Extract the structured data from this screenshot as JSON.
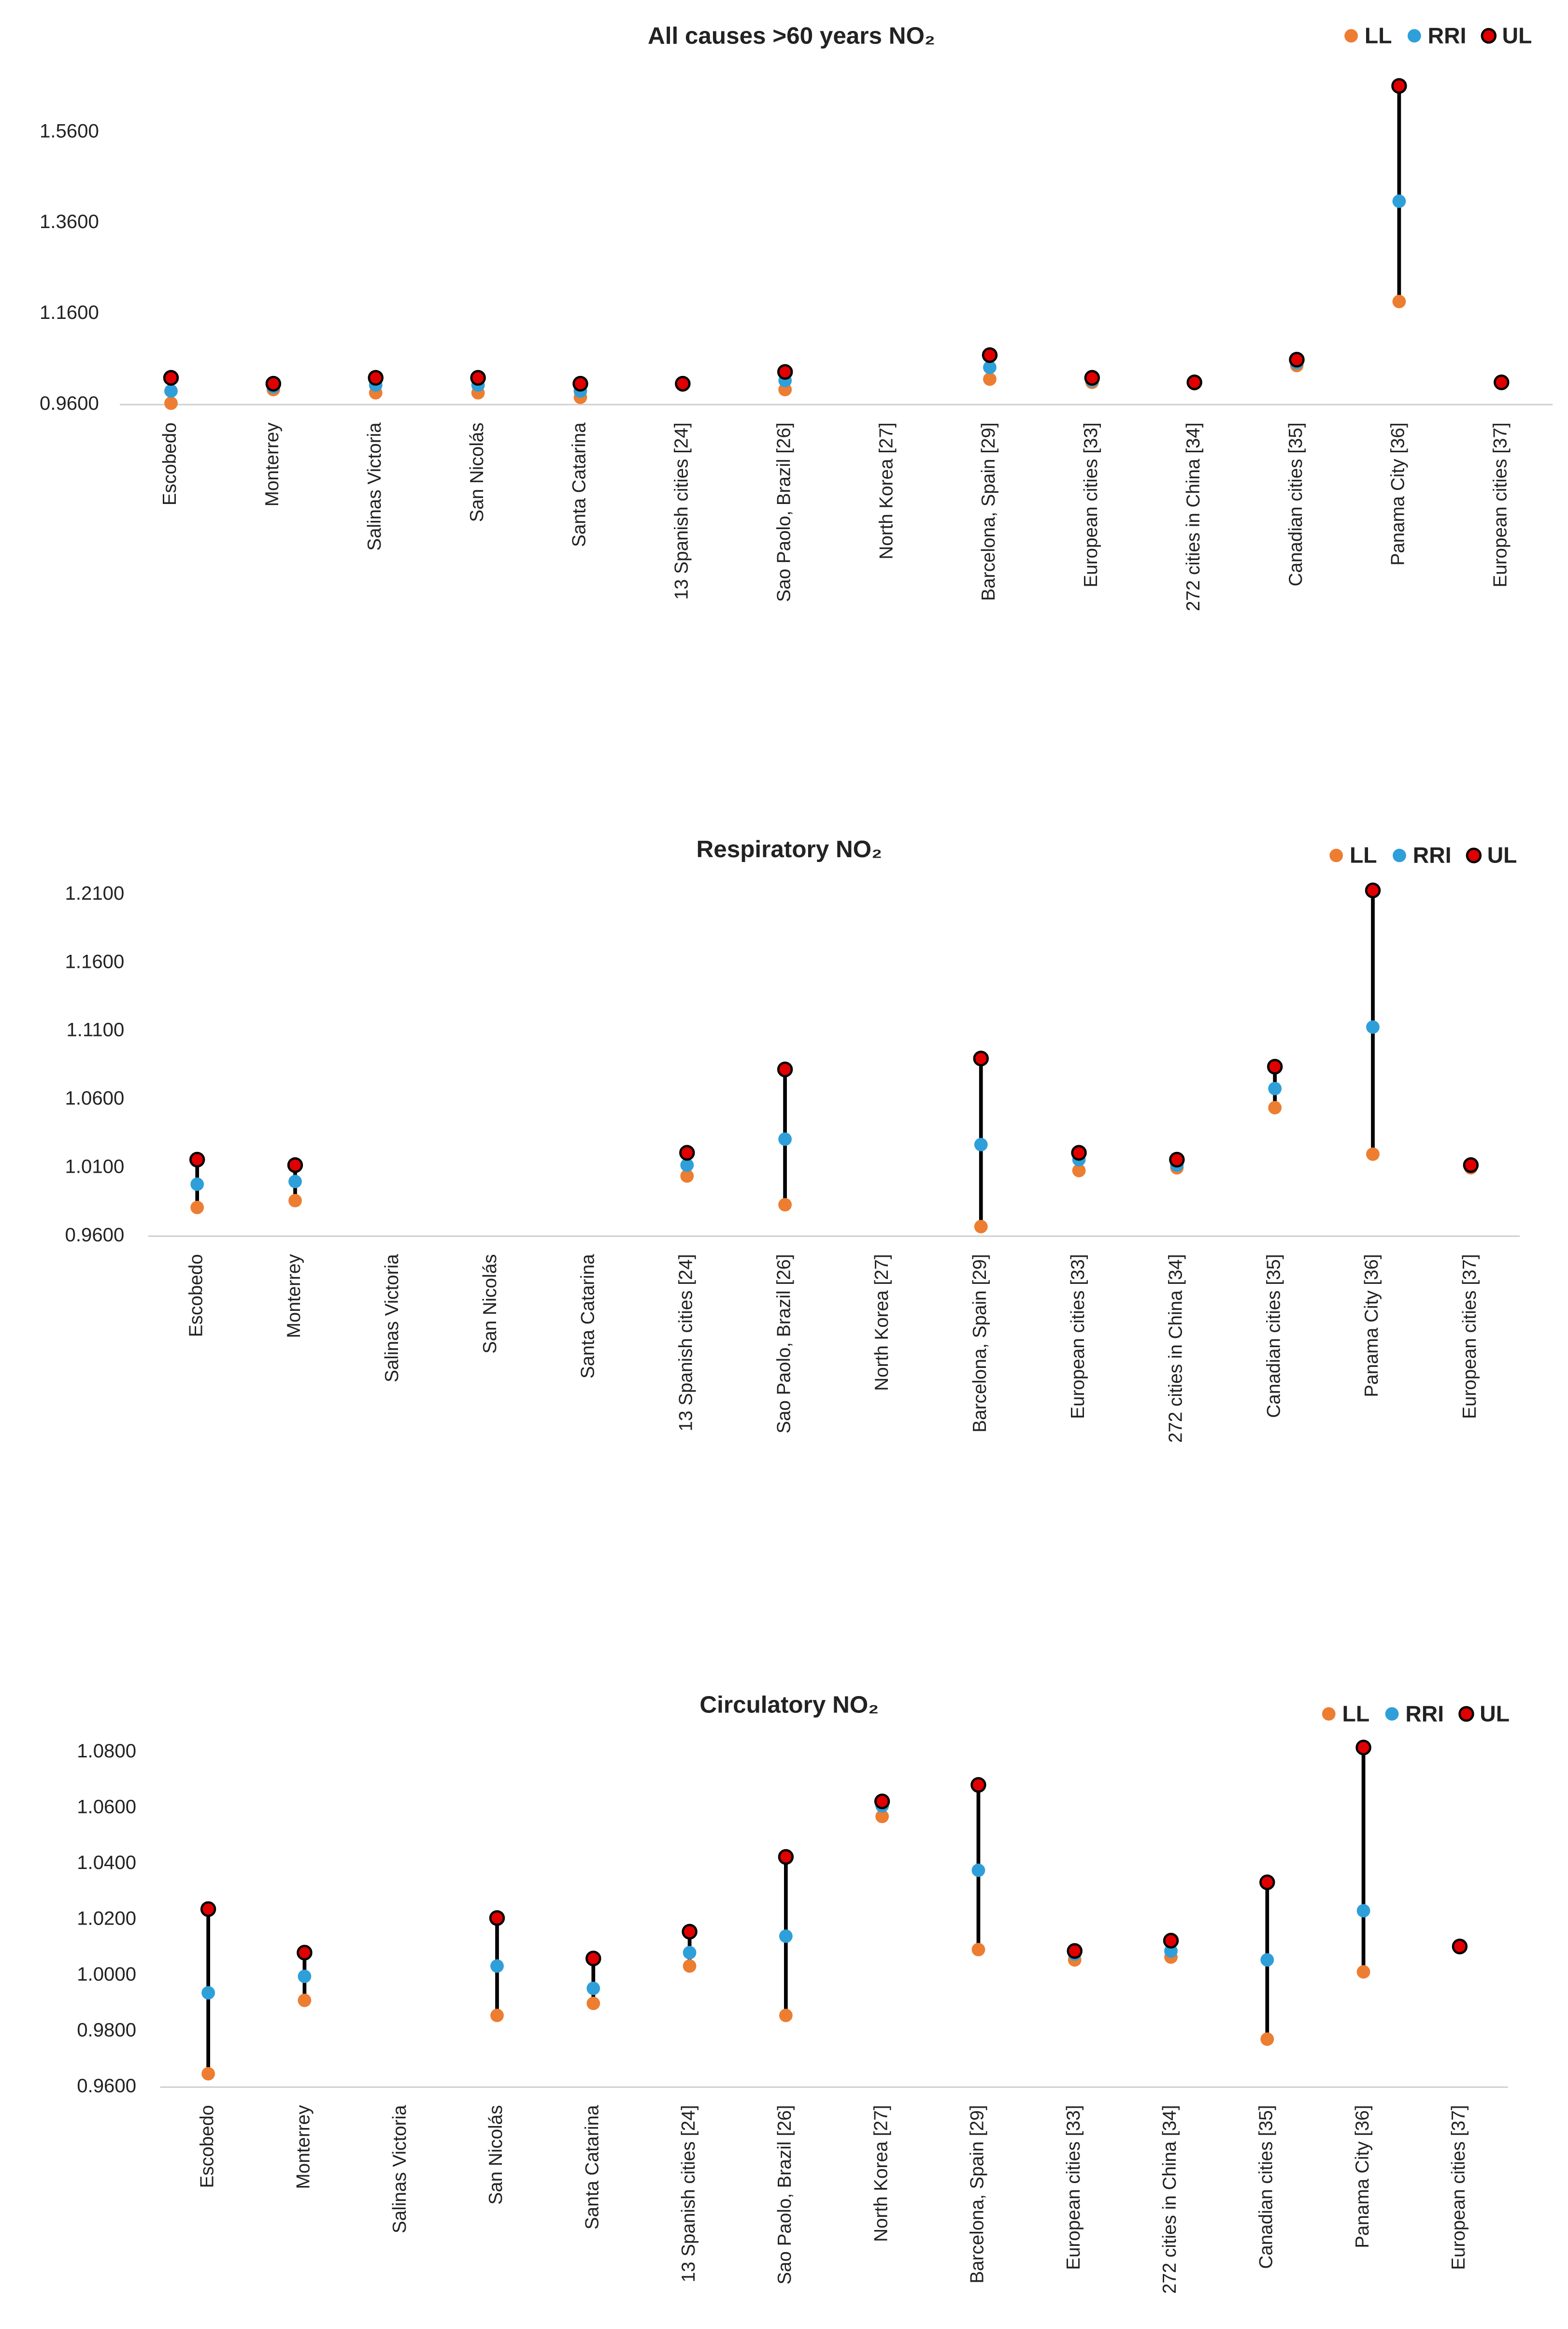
{
  "chart_data": [
    {
      "type": "range-dot",
      "title": "All causes >60 years NO₂",
      "categories": [
        "Escobedo",
        "Monterrey",
        "Salinas Victoria",
        "San Nicolás",
        "Santa Catarina",
        "13 Spanish cities [24]",
        "Sao Paolo, Brazil [26]",
        "North Korea [27]",
        "Barcelona, Spain [29]",
        "European cities [33]",
        "272 cities in China [34]",
        "Canadian cities [35]",
        "Panama City [36]",
        "European cities [37]"
      ],
      "series": [
        {
          "name": "LL",
          "color": "#ed7d31",
          "values": [
            0.963,
            0.993,
            0.986,
            0.986,
            0.976,
            1.003,
            0.993,
            null,
            1.016,
            1.009,
            1.006,
            1.046,
            1.187,
            1.007
          ]
        },
        {
          "name": "RRI",
          "color": "#2e9fd9",
          "values": [
            0.99,
            0.999,
            1.003,
            1.003,
            0.99,
            1.004,
            1.013,
            null,
            1.042,
            1.013,
            1.008,
            1.052,
            1.408,
            1.008
          ]
        },
        {
          "name": "UL",
          "color": "#e00000",
          "values": [
            1.019,
            1.006,
            1.019,
            1.019,
            1.006,
            1.006,
            1.032,
            null,
            1.069,
            1.019,
            1.009,
            1.059,
            1.662,
            1.009
          ]
        }
      ],
      "ylim": [
        0.96,
        1.7
      ],
      "yticks": [
        {
          "value": 0.96,
          "label": "0.9600"
        },
        {
          "value": 1.16,
          "label": "1.1600"
        },
        {
          "value": 1.36,
          "label": "1.3600"
        },
        {
          "value": 1.56,
          "label": "1.5600"
        }
      ],
      "legend": "top-right"
    },
    {
      "type": "range-dot",
      "title": "Respiratory NO₂",
      "categories": [
        "Escobedo",
        "Monterrey",
        "Salinas Victoria",
        "San Nicolás",
        "Santa Catarina",
        "13 Spanish cities [24]",
        "Sao Paolo, Brazil [26]",
        "North Korea [27]",
        "Barcelona, Spain [29]",
        "European cities [33]",
        "272 cities in China [34]",
        "Canadian cities [35]",
        "Panama City [36]",
        "European cities [37]"
      ],
      "series": [
        {
          "name": "LL",
          "color": "#ed7d31",
          "values": [
            0.981,
            0.986,
            null,
            null,
            null,
            1.004,
            0.983,
            null,
            0.967,
            1.008,
            1.01,
            1.054,
            1.02,
            1.01
          ]
        },
        {
          "name": "RRI",
          "color": "#2e9fd9",
          "values": [
            0.998,
            1.0,
            null,
            null,
            null,
            1.012,
            1.031,
            null,
            1.027,
            1.016,
            1.012,
            1.068,
            1.113,
            1.011
          ]
        },
        {
          "name": "UL",
          "color": "#e00000",
          "values": [
            1.016,
            1.012,
            null,
            null,
            null,
            1.021,
            1.082,
            null,
            1.09,
            1.021,
            1.016,
            1.084,
            1.213,
            1.012
          ]
        }
      ],
      "ylim": [
        0.96,
        1.22
      ],
      "yticks": [
        {
          "value": 0.96,
          "label": "0.9600"
        },
        {
          "value": 1.01,
          "label": "1.0100"
        },
        {
          "value": 1.06,
          "label": "1.0600"
        },
        {
          "value": 1.11,
          "label": "1.1100"
        },
        {
          "value": 1.16,
          "label": "1.1600"
        },
        {
          "value": 1.21,
          "label": "1.2100"
        }
      ],
      "legend": "top-right"
    },
    {
      "type": "range-dot",
      "title": "Circulatory NO₂",
      "categories": [
        "Escobedo",
        "Monterrey",
        "Salinas Victoria",
        "San Nicolás",
        "Santa Catarina",
        "13 Spanish cities [24]",
        "Sao Paolo, Brazil [26]",
        "North Korea [27]",
        "Barcelona, Spain [29]",
        "European cities [33]",
        "272 cities in China [34]",
        "Canadian cities [35]",
        "Panama City [36]",
        "European cities [37]"
      ],
      "series": [
        {
          "name": "LL",
          "color": "#ed7d31",
          "values": [
            0.9648,
            0.9911,
            null,
            0.9857,
            0.99,
            1.0034,
            0.9857,
            1.057,
            1.0093,
            1.0056,
            1.0066,
            0.9772,
            1.0013,
            1.0104
          ]
        },
        {
          "name": "RRI",
          "color": "#2e9fd9",
          "values": [
            0.9938,
            0.9997,
            null,
            1.0034,
            0.9954,
            1.0082,
            1.0141,
            1.0608,
            1.0377,
            1.0077,
            1.0088,
            1.0056,
            1.0232,
            1.0104
          ]
        },
        {
          "name": "UL",
          "color": "#e00000",
          "values": [
            1.0238,
            1.0082,
            null,
            1.0206,
            1.0061,
            1.0157,
            1.0425,
            1.0624,
            1.0683,
            1.0088,
            1.0125,
            1.0334,
            1.0817,
            1.0104
          ]
        }
      ],
      "ylim": [
        0.96,
        1.09
      ],
      "yticks": [
        {
          "value": 0.96,
          "label": "0.9600"
        },
        {
          "value": 0.98,
          "label": "0.9800"
        },
        {
          "value": 1.0,
          "label": "1.0000"
        },
        {
          "value": 1.02,
          "label": "1.0200"
        },
        {
          "value": 1.04,
          "label": "1.0400"
        },
        {
          "value": 1.06,
          "label": "1.0600"
        },
        {
          "value": 1.08,
          "label": "1.0800"
        }
      ],
      "legend": "top-right"
    }
  ]
}
